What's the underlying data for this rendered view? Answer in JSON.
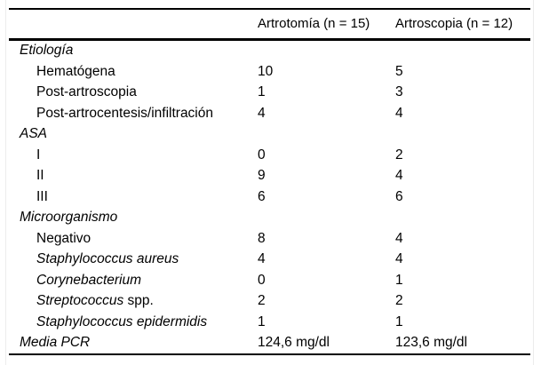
{
  "table": {
    "columns": [
      "",
      "Artrotomía (n = 15)",
      "Artroscopia (n = 12)"
    ],
    "rows": [
      {
        "indent": false,
        "italic": true,
        "label": "Etiología",
        "suffix": "",
        "v1": "",
        "v2": ""
      },
      {
        "indent": true,
        "italic": false,
        "label": "Hematógena",
        "suffix": "",
        "v1": "10",
        "v2": "5"
      },
      {
        "indent": true,
        "italic": false,
        "label": "Post-artroscopia",
        "suffix": "",
        "v1": "1",
        "v2": "3"
      },
      {
        "indent": true,
        "italic": false,
        "label": "Post-artrocentesis/infiltración",
        "suffix": "",
        "v1": "4",
        "v2": "4"
      },
      {
        "indent": false,
        "italic": true,
        "label": "ASA",
        "suffix": "",
        "v1": "",
        "v2": ""
      },
      {
        "indent": true,
        "italic": false,
        "label": "I",
        "suffix": "",
        "v1": "0",
        "v2": "2"
      },
      {
        "indent": true,
        "italic": false,
        "label": "II",
        "suffix": "",
        "v1": "9",
        "v2": "4"
      },
      {
        "indent": true,
        "italic": false,
        "label": "III",
        "suffix": "",
        "v1": "6",
        "v2": "6"
      },
      {
        "indent": false,
        "italic": true,
        "label": "Microorganismo",
        "suffix": "",
        "v1": "",
        "v2": ""
      },
      {
        "indent": true,
        "italic": false,
        "label": "Negativo",
        "suffix": "",
        "v1": "8",
        "v2": "4"
      },
      {
        "indent": true,
        "italic": true,
        "label": "Staphylococcus aureus",
        "suffix": "",
        "v1": "4",
        "v2": "4"
      },
      {
        "indent": true,
        "italic": true,
        "label": "Corynebacterium",
        "suffix": "",
        "v1": "0",
        "v2": "1"
      },
      {
        "indent": true,
        "italic": true,
        "label": "Streptococcus",
        "suffix": " spp.",
        "v1": "2",
        "v2": "2"
      },
      {
        "indent": true,
        "italic": true,
        "label": "Staphylococcus epidermidis",
        "suffix": "",
        "v1": "1",
        "v2": "1"
      },
      {
        "indent": false,
        "italic": true,
        "label": "Media PCR",
        "suffix": "",
        "v1": "124,6 mg/dl",
        "v2": "123,6 mg/dl"
      }
    ]
  }
}
